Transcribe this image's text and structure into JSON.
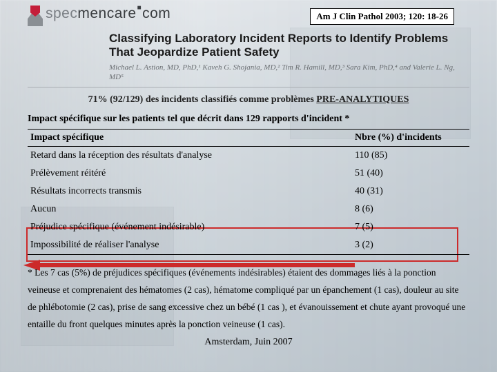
{
  "logo": {
    "part_a": "spec",
    "part_b": "mencare",
    "dot": "■",
    "suffix": "com"
  },
  "citation": "Am J Clin Pathol 2003; 120: 18-26",
  "paper_title": "Classifying Laboratory Incident Reports to Identify Problems That Jeopardize Patient Safety",
  "authors": "Michael L. Astion, MD, PhD,¹ Kaveh G. Shojania, MD,² Tim R. Hamill, MD,³ Sara Kim, PhD,⁴ and Valerie L. Ng, MD⁵",
  "key_stat": {
    "pct": "71% (92/129)",
    "mid": " des incidents classifiés comme problèmes ",
    "pre": "PRE-ANALYTIQUES"
  },
  "table": {
    "title": "Impact spécifique sur les patients tel que décrit dans 129 rapports d'incident *",
    "headers": {
      "impact": "Impact spécifique",
      "count": "Nbre (%) d'incidents"
    },
    "rows": [
      {
        "impact": "Retard dans la  réception des résultats d'analyse",
        "count": "110 (85)"
      },
      {
        "impact": "Prélèvement réitéré",
        "count": "51 (40)"
      },
      {
        "impact": "Résultats incorrects transmis",
        "count": "40 (31)"
      },
      {
        "impact": "Aucun",
        "count": "8 (6)"
      },
      {
        "impact": "Préjudice spécifique (événement indésirable)",
        "count": "7 (5)"
      },
      {
        "impact": "Impossibilité de réaliser l'analyse",
        "count": "3 (2)"
      }
    ]
  },
  "footnote": "* Les 7 cas (5%) de préjudices spécifiques (événements indésirables) étaient des dommages liés à la ponction veineuse et comprenaient des hématomes (2 cas), hématome compliqué par un épanchement  (1 cas), douleur au site de phlébotomie (2 cas), prise de sang excessive chez un bébé (1 cas ), et évanouissement et chute ayant provoqué une entaille du front quelques minutes après la ponction veineuse (1 cas).",
  "footer": "Amsterdam, Juin 2007",
  "colors": {
    "accent_red": "#c41e3a",
    "box_red": "#cc2a2a"
  }
}
